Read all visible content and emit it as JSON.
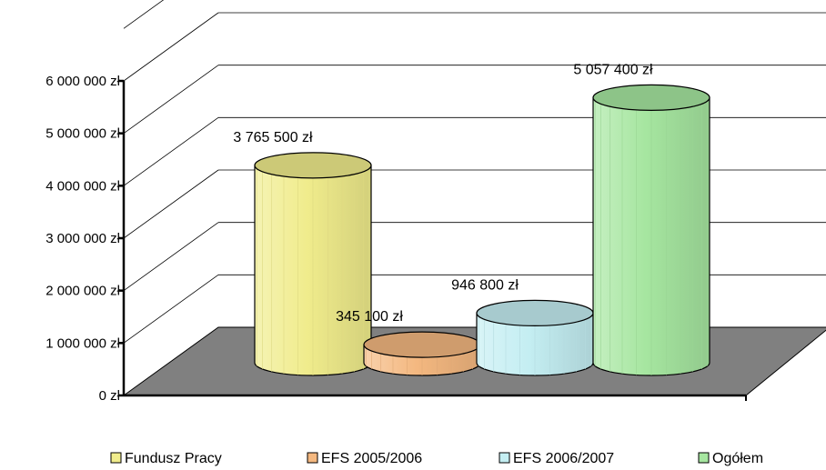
{
  "chart_data": {
    "type": "bar",
    "style": "3d-cylinder",
    "categories": [
      "Fundusz Pracy",
      "EFS 2005/2006",
      "EFS 2006/2007",
      "Ogółem"
    ],
    "values": [
      3765500,
      345100,
      946800,
      5057400
    ],
    "data_labels": [
      "3 765 500 zł",
      "345 100 zł",
      "946 800 zł",
      "5 057 400 zł"
    ],
    "colors": [
      "#f0ec8c",
      "#f4b880",
      "#c4eef2",
      "#a6e6a0"
    ],
    "ylim": [
      0,
      6000000
    ],
    "y_ticks": [
      0,
      1000000,
      2000000,
      3000000,
      4000000,
      5000000,
      6000000
    ],
    "y_tick_labels": [
      "0 zł",
      "1 000 000 zł",
      "2 000 000 zł",
      "3 000 000 zł",
      "4 000 000 zł",
      "5 000 000 zł",
      "6 000 000 zł"
    ],
    "grid": true,
    "floor_color": "#808080",
    "legend_position": "bottom",
    "legend": [
      "Fundusz Pracy",
      "EFS 2005/2006",
      "EFS 2006/2007",
      "Ogółem"
    ]
  }
}
